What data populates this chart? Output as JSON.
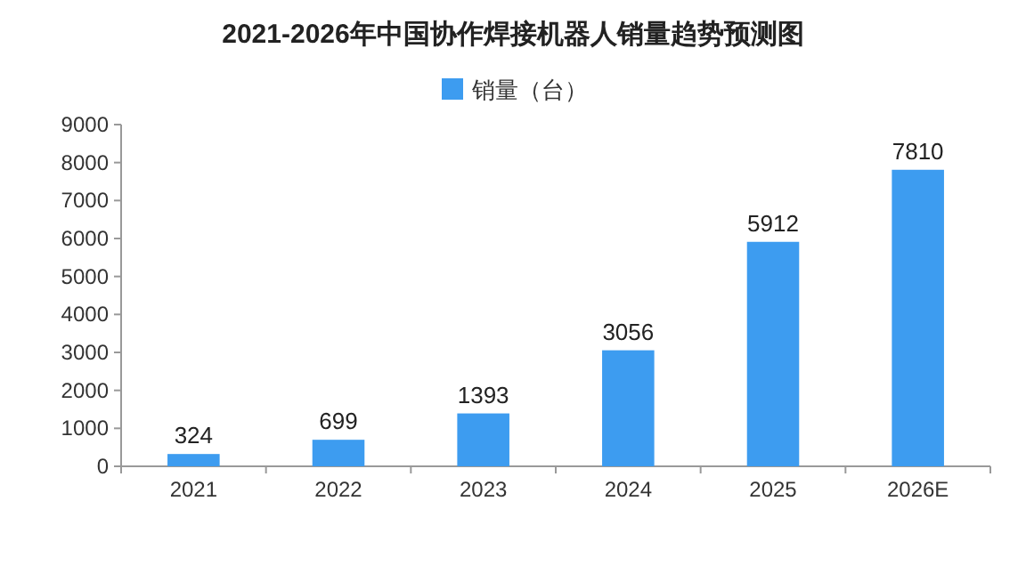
{
  "chart_data": {
    "type": "bar",
    "title": "2021-2026年中国协作焊接机器人销量趋势预测图",
    "categories": [
      "2021",
      "2022",
      "2023",
      "2024",
      "2025",
      "2026E"
    ],
    "series": [
      {
        "name": "销量（台）",
        "color": "#3d9cf0",
        "values": [
          324,
          699,
          1393,
          3056,
          5912,
          7810
        ]
      }
    ],
    "ylim": [
      0,
      9000
    ],
    "yticks": [
      0,
      1000,
      2000,
      3000,
      4000,
      5000,
      6000,
      7000,
      8000,
      9000
    ],
    "data_labels": true,
    "legend": "top",
    "grid": false
  }
}
